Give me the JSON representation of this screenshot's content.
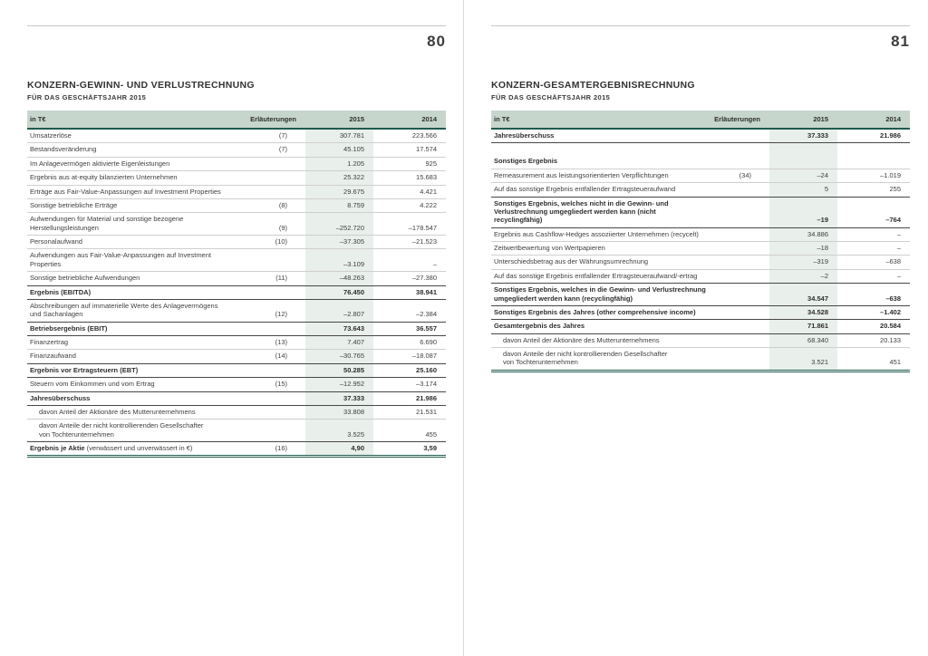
{
  "colors": {
    "accent_rule": "#1e5b4e",
    "header_bg": "#c7d6cd",
    "column_stripe": "#e9efea",
    "row_separator": "#cfcfcf",
    "total_separator": "#474747",
    "text": "#3f3f3f"
  },
  "pages": [
    {
      "page_number": "80",
      "title": "KONZERN-GEWINN- UND VERLUSTRECHNUNG",
      "subtitle": "FÜR DAS GESCHÄFTSJAHR 2015",
      "table": {
        "columns": {
          "label": "in T€",
          "erl": "Erläuterungen",
          "y2015": "2015",
          "y2014": "2014"
        },
        "rows": [
          {
            "label": "Umsatzerlöse",
            "erl": "(7)",
            "v2015": "307.781",
            "v2014": "223.566"
          },
          {
            "label": "Bestandsveränderung",
            "erl": "(7)",
            "v2015": "45.105",
            "v2014": "17.574"
          },
          {
            "label": "Im Anlagevermögen aktivierte Eigenleistungen",
            "erl": "",
            "v2015": "1.205",
            "v2014": "925"
          },
          {
            "label": "Ergebnis aus at-equity bilanzierten Unternehmen",
            "erl": "",
            "v2015": "25.322",
            "v2014": "15.683"
          },
          {
            "label": "Erträge aus Fair-Value-Anpassungen auf Investment Properties",
            "erl": "",
            "v2015": "29.675",
            "v2014": "4.421"
          },
          {
            "label": "Sonstige betriebliche Erträge",
            "erl": "(8)",
            "v2015": "8.759",
            "v2014": "4.222"
          },
          {
            "label": "Aufwendungen für Material und sonstige bezogene",
            "label2": "Herstellungsleistungen",
            "erl": "(9)",
            "v2015": "–252.720",
            "v2014": "–178.547"
          },
          {
            "label": "Personalaufwand",
            "erl": "(10)",
            "v2015": "–37.305",
            "v2014": "–21.523"
          },
          {
            "label": "Aufwendungen aus Fair-Value-Anpassungen auf Investment Properties",
            "erl": "",
            "v2015": "–3.109",
            "v2014": "–"
          },
          {
            "label": "Sonstige betriebliche Aufwendungen",
            "erl": "(11)",
            "v2015": "–48.263",
            "v2014": "–27.380"
          },
          {
            "label": "Ergebnis (EBITDA)",
            "erl": "",
            "v2015": "76.450",
            "v2014": "38.941",
            "bold": true
          },
          {
            "label": "Abschreibungen auf immaterielle Werte des Anlagevermögens",
            "label2": "und Sachanlagen",
            "erl": "(12)",
            "v2015": "–2.807",
            "v2014": "–2.384"
          },
          {
            "label": "Betriebsergebnis (EBIT)",
            "erl": "",
            "v2015": "73.643",
            "v2014": "36.557",
            "bold": true
          },
          {
            "label": "Finanzertrag",
            "erl": "(13)",
            "v2015": "7.407",
            "v2014": "6.690"
          },
          {
            "label": "Finanzaufwand",
            "erl": "(14)",
            "v2015": "–30.765",
            "v2014": "–18.087"
          },
          {
            "label": "Ergebnis vor Ertragsteuern (EBT)",
            "erl": "",
            "v2015": "50.285",
            "v2014": "25.160",
            "bold": true
          },
          {
            "label": "Steuern vom Einkommen und vom Ertrag",
            "erl": "(15)",
            "v2015": "–12.952",
            "v2014": "–3.174"
          },
          {
            "label": "Jahresüberschuss",
            "erl": "",
            "v2015": "37.333",
            "v2014": "21.986",
            "bold": true
          },
          {
            "label": "davon Anteil der Aktionäre des Mutterunternehmens",
            "erl": "",
            "v2015": "33.808",
            "v2014": "21.531",
            "indent": true
          },
          {
            "label": "davon Anteile der nicht kontrollierenden Gesellschafter",
            "label2": "von Tochterunternehmen",
            "erl": "",
            "v2015": "3.525",
            "v2014": "455",
            "indent": true
          },
          {
            "label": "Ergebnis je Aktie",
            "note": "(verwässert und unverwässert in €)",
            "erl": "(16)",
            "v2015": "4,90",
            "v2014": "3,59",
            "bold": true,
            "last": true
          }
        ]
      }
    },
    {
      "page_number": "81",
      "title": "KONZERN-GESAMTERGEBNISRECHNUNG",
      "subtitle": "FÜR DAS GESCHÄFTSJAHR 2015",
      "table": {
        "columns": {
          "label": "in T€",
          "erl": "Erläuterungen",
          "y2015": "2015",
          "y2014": "2014"
        },
        "rows": [
          {
            "label": "Jahresüberschuss",
            "erl": "",
            "v2015": "37.333",
            "v2014": "21.986",
            "bold": true
          },
          {
            "spacer": true
          },
          {
            "label": "Sonstiges Ergebnis",
            "erl": "",
            "v2015": "",
            "v2014": "",
            "labelbold": true
          },
          {
            "label": "Remeasurement aus leistungsorientierten Verpflichtungen",
            "erl": "(34)",
            "v2015": "–24",
            "v2014": "–1.019"
          },
          {
            "label": "Auf das sonstige Ergebnis entfallender Ertragsteueraufwand",
            "erl": "",
            "v2015": "5",
            "v2014": "255"
          },
          {
            "label": "Sonstiges Ergebnis, welches nicht in die Gewinn- und",
            "label2": "Verlustrechnung umgegliedert werden kann (nicht recyclingfähig)",
            "erl": "",
            "v2015": "–19",
            "v2014": "–764",
            "bold": true
          },
          {
            "label": "Ergebnis aus Cashflow-Hedges assoziierter Unternehmen (recycelt)",
            "erl": "",
            "v2015": "34.886",
            "v2014": "–"
          },
          {
            "label": "Zeitwertbewertung von Wertpapieren",
            "erl": "",
            "v2015": "–18",
            "v2014": "–"
          },
          {
            "label": "Unterschiedsbetrag aus der Währungsumrechnung",
            "erl": "",
            "v2015": "–319",
            "v2014": "–638"
          },
          {
            "label": "Auf das sonstige Ergebnis entfallender Ertragsteueraufwand/-ertrag",
            "erl": "",
            "v2015": "–2",
            "v2014": "–"
          },
          {
            "label": "Sonstiges Ergebnis, welches in die Gewinn- und Verlustrechnung",
            "label2": "umgegliedert werden kann (recyclingfähig)",
            "erl": "",
            "v2015": "34.547",
            "v2014": "–638",
            "bold": true
          },
          {
            "label": "Sonstiges Ergebnis des Jahres (other comprehensive income)",
            "erl": "",
            "v2015": "34.528",
            "v2014": "–1.402",
            "bold": true
          },
          {
            "label": "Gesamtergebnis des Jahres",
            "erl": "",
            "v2015": "71.861",
            "v2014": "20.584",
            "bold": true
          },
          {
            "label": "davon Anteil der Aktionäre des Mutterunternehmens",
            "erl": "",
            "v2015": "68.340",
            "v2014": "20.133",
            "indent": true
          },
          {
            "label": "davon Anteile der nicht kontrollierenden Gesellschafter",
            "label2": "von Tochterunternehmen",
            "erl": "",
            "v2015": "3.521",
            "v2014": "451",
            "indent": true,
            "last": true
          }
        ]
      }
    }
  ]
}
